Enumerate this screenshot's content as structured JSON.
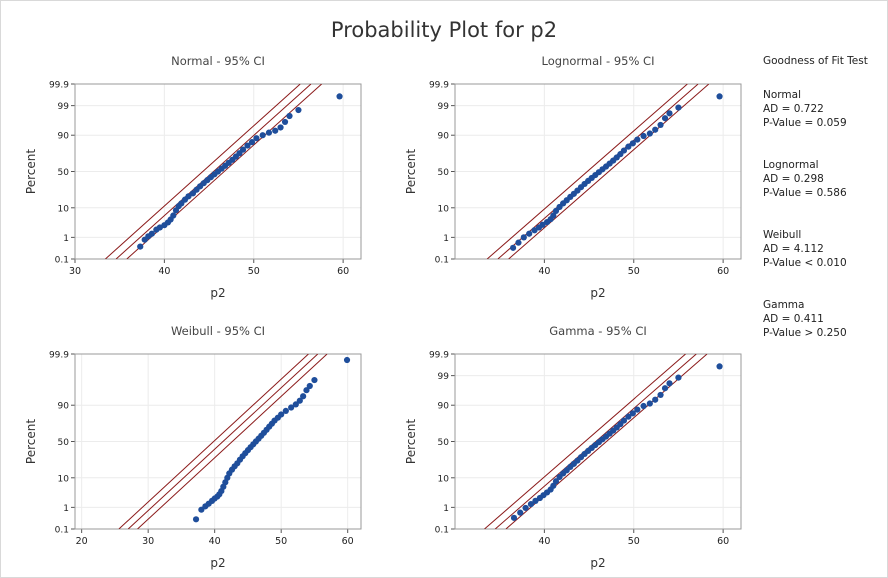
{
  "title": "Probability Plot for p2",
  "chart_data": [
    {
      "type": "scatter",
      "title": "Normal - 95% CI",
      "xlabel": "p2",
      "ylabel": "Percent",
      "xlim": [
        30,
        62
      ],
      "x_ticks": [
        30,
        40,
        50,
        60
      ],
      "y_ticks": [
        "0.1",
        "1",
        "10",
        "50",
        "90",
        "99",
        "99.9"
      ],
      "fit_line": {
        "x0": 34.6,
        "x1": 56.4,
        "p0": 0.1,
        "p1": 99.9
      },
      "ci_offset": 1.2,
      "points": [
        [
          37.3,
          0.4
        ],
        [
          37.8,
          0.8
        ],
        [
          38.2,
          1.1
        ],
        [
          38.6,
          1.4
        ],
        [
          39.1,
          2.0
        ],
        [
          39.5,
          2.4
        ],
        [
          40.0,
          2.9
        ],
        [
          40.4,
          3.6
        ],
        [
          40.7,
          4.5
        ],
        [
          41.0,
          6.0
        ],
        [
          41.3,
          8.5
        ],
        [
          41.6,
          11
        ],
        [
          41.9,
          13
        ],
        [
          42.3,
          16
        ],
        [
          42.7,
          19
        ],
        [
          43.2,
          22
        ],
        [
          43.6,
          26
        ],
        [
          44.0,
          30
        ],
        [
          44.4,
          34
        ],
        [
          44.8,
          38
        ],
        [
          45.2,
          42
        ],
        [
          45.6,
          46
        ],
        [
          46.0,
          50
        ],
        [
          46.4,
          54
        ],
        [
          46.8,
          58
        ],
        [
          47.2,
          62
        ],
        [
          47.6,
          66
        ],
        [
          48.0,
          70
        ],
        [
          48.4,
          74
        ],
        [
          48.8,
          78
        ],
        [
          49.3,
          82
        ],
        [
          49.8,
          85
        ],
        [
          50.3,
          88
        ],
        [
          51.0,
          90
        ],
        [
          51.7,
          91.5
        ],
        [
          52.4,
          92.5
        ],
        [
          53.0,
          94
        ],
        [
          53.5,
          96
        ],
        [
          54.0,
          97.5
        ],
        [
          55.0,
          98.5
        ],
        [
          59.6,
          99.6
        ]
      ]
    },
    {
      "type": "scatter",
      "title": "Lognormal - 95% CI",
      "xlabel": "p2",
      "ylabel": "Percent",
      "xlim": [
        30,
        62
      ],
      "x_ticks": [
        40,
        50,
        60
      ],
      "y_ticks": [
        "0.1",
        "1",
        "10",
        "50",
        "90",
        "99",
        "99.9"
      ],
      "fit_line": {
        "x0": 34.8,
        "x1": 57.2,
        "p0": 0.1,
        "p1": 99.9
      },
      "ci_offset": 1.2,
      "points": [
        [
          36.5,
          0.35
        ],
        [
          37.1,
          0.6
        ],
        [
          37.7,
          1.0
        ],
        [
          38.3,
          1.4
        ],
        [
          38.9,
          1.9
        ],
        [
          39.4,
          2.4
        ],
        [
          39.8,
          3.0
        ],
        [
          40.3,
          3.7
        ],
        [
          40.7,
          4.6
        ],
        [
          41.0,
          6.0
        ],
        [
          41.3,
          8.2
        ],
        [
          41.7,
          10.5
        ],
        [
          42.1,
          13
        ],
        [
          42.5,
          15.5
        ],
        [
          42.9,
          18.5
        ],
        [
          43.3,
          21.5
        ],
        [
          43.7,
          25
        ],
        [
          44.1,
          29
        ],
        [
          44.5,
          33
        ],
        [
          44.9,
          37
        ],
        [
          45.3,
          41
        ],
        [
          45.7,
          45
        ],
        [
          46.1,
          49
        ],
        [
          46.5,
          53
        ],
        [
          46.9,
          57
        ],
        [
          47.3,
          61
        ],
        [
          47.7,
          65
        ],
        [
          48.1,
          69
        ],
        [
          48.5,
          73
        ],
        [
          48.9,
          77
        ],
        [
          49.4,
          81
        ],
        [
          49.9,
          84
        ],
        [
          50.4,
          87
        ],
        [
          51.1,
          89.5
        ],
        [
          51.8,
          91
        ],
        [
          52.4,
          93
        ],
        [
          53.0,
          95
        ],
        [
          53.5,
          97
        ],
        [
          54.0,
          98
        ],
        [
          55.0,
          98.8
        ],
        [
          59.6,
          99.6
        ]
      ]
    },
    {
      "type": "scatter",
      "title": "Weibull - 95% CI",
      "xlabel": "p2",
      "ylabel": "Percent",
      "xlim": [
        19,
        62
      ],
      "x_ticks": [
        20,
        30,
        40,
        50,
        60
      ],
      "y_ticks": [
        "0.1",
        "1",
        "10",
        "50",
        "90",
        "99.9"
      ],
      "fit_line": {
        "x0": 27.0,
        "x1": 55.5,
        "p0": 0.1,
        "p1": 99.9
      },
      "ci_offset": 1.4,
      "points": [
        [
          37.2,
          0.3
        ],
        [
          38.0,
          0.8
        ],
        [
          38.6,
          1.1
        ],
        [
          39.1,
          1.4
        ],
        [
          39.6,
          1.8
        ],
        [
          40.0,
          2.2
        ],
        [
          40.4,
          2.6
        ],
        [
          40.7,
          3.1
        ],
        [
          41.0,
          4.0
        ],
        [
          41.3,
          5.5
        ],
        [
          41.6,
          7.5
        ],
        [
          41.9,
          10
        ],
        [
          42.2,
          13
        ],
        [
          42.6,
          16
        ],
        [
          43.0,
          19
        ],
        [
          43.4,
          22
        ],
        [
          43.8,
          26
        ],
        [
          44.2,
          30
        ],
        [
          44.6,
          34
        ],
        [
          45.0,
          38
        ],
        [
          45.4,
          42
        ],
        [
          45.8,
          46
        ],
        [
          46.2,
          50
        ],
        [
          46.6,
          54
        ],
        [
          47.0,
          58
        ],
        [
          47.4,
          62
        ],
        [
          47.8,
          66
        ],
        [
          48.2,
          70
        ],
        [
          48.6,
          73.5
        ],
        [
          49.0,
          77
        ],
        [
          49.5,
          80
        ],
        [
          50.0,
          83
        ],
        [
          50.7,
          86
        ],
        [
          51.5,
          88.5
        ],
        [
          52.2,
          90.5
        ],
        [
          52.8,
          92.5
        ],
        [
          53.3,
          94.5
        ],
        [
          53.8,
          96.5
        ],
        [
          54.3,
          97.5
        ],
        [
          55.0,
          98.5
        ],
        [
          59.9,
          99.8
        ]
      ]
    },
    {
      "type": "scatter",
      "title": "Gamma - 95% CI",
      "xlabel": "p2",
      "ylabel": "Percent",
      "xlim": [
        30,
        62
      ],
      "x_ticks": [
        40,
        50,
        60
      ],
      "y_ticks": [
        "0.1",
        "1",
        "10",
        "50",
        "90",
        "99",
        "99.9"
      ],
      "fit_line": {
        "x0": 34.5,
        "x1": 57.0,
        "p0": 0.1,
        "p1": 99.9
      },
      "ci_offset": 1.2,
      "points": [
        [
          36.6,
          0.35
        ],
        [
          37.3,
          0.6
        ],
        [
          37.9,
          0.95
        ],
        [
          38.5,
          1.35
        ],
        [
          39.0,
          1.8
        ],
        [
          39.5,
          2.3
        ],
        [
          39.9,
          2.9
        ],
        [
          40.3,
          3.6
        ],
        [
          40.7,
          4.5
        ],
        [
          41.0,
          5.9
        ],
        [
          41.3,
          8.0
        ],
        [
          41.7,
          10.5
        ],
        [
          42.1,
          13
        ],
        [
          42.5,
          15.5
        ],
        [
          42.9,
          18.5
        ],
        [
          43.3,
          21.5
        ],
        [
          43.7,
          25
        ],
        [
          44.1,
          29
        ],
        [
          44.5,
          33
        ],
        [
          44.9,
          37
        ],
        [
          45.3,
          41
        ],
        [
          45.7,
          45
        ],
        [
          46.1,
          49
        ],
        [
          46.5,
          53
        ],
        [
          46.9,
          57
        ],
        [
          47.3,
          61
        ],
        [
          47.7,
          65
        ],
        [
          48.1,
          69
        ],
        [
          48.5,
          73
        ],
        [
          48.9,
          77
        ],
        [
          49.4,
          81
        ],
        [
          49.9,
          84
        ],
        [
          50.4,
          87
        ],
        [
          51.1,
          89.5
        ],
        [
          51.8,
          91
        ],
        [
          52.4,
          93
        ],
        [
          53.0,
          95
        ],
        [
          53.5,
          97
        ],
        [
          54.0,
          98
        ],
        [
          55.0,
          98.8
        ],
        [
          59.6,
          99.6
        ]
      ]
    }
  ],
  "goodness_of_fit": {
    "title": "Goodness of Fit Test",
    "tests": [
      {
        "name": "Normal",
        "ad": "AD = 0.722",
        "p": "P-Value = 0.059"
      },
      {
        "name": "Lognormal",
        "ad": "AD = 0.298",
        "p": "P-Value = 0.586"
      },
      {
        "name": "Weibull",
        "ad": "AD = 4.112",
        "p": "P-Value < 0.010"
      },
      {
        "name": "Gamma",
        "ad": "AD = 0.411",
        "p": "P-Value > 0.250"
      }
    ]
  },
  "colors": {
    "points": "#1f4e9b",
    "fit_line": "#8b1a1a",
    "grid": "#ececec",
    "axis": "#555555"
  }
}
